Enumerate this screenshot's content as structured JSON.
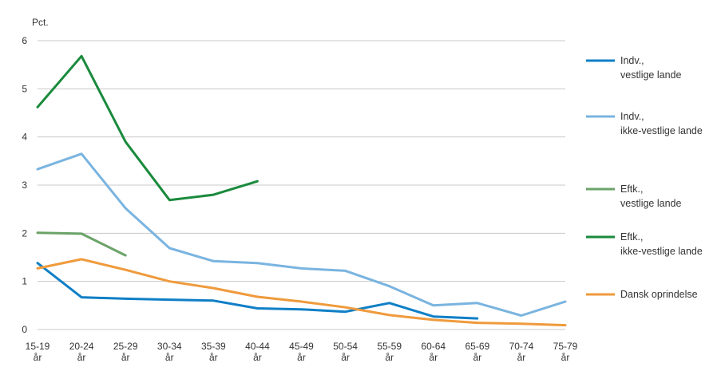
{
  "chart_data": {
    "type": "line",
    "ylabel": "Pct.",
    "ylim": [
      0,
      6
    ],
    "yticks": [
      0,
      1,
      2,
      3,
      4,
      5,
      6
    ],
    "grid": true,
    "legend_position": "right",
    "categories": [
      [
        "15-19",
        "år"
      ],
      [
        "20-24",
        "år"
      ],
      [
        "25-29",
        "år"
      ],
      [
        "30-34",
        "år"
      ],
      [
        "35-39",
        "år"
      ],
      [
        "40-44",
        "år"
      ],
      [
        "45-49",
        "år"
      ],
      [
        "50-54",
        "år"
      ],
      [
        "55-59",
        "år"
      ],
      [
        "60-64",
        "år"
      ],
      [
        "65-69",
        "år"
      ],
      [
        "70-74",
        "år"
      ],
      [
        "75-79",
        "år"
      ]
    ],
    "series": [
      {
        "name": [
          "Indv.,",
          "vestlige lande"
        ],
        "color": "#0f7fc6",
        "values": [
          1.38,
          0.67,
          0.64,
          0.62,
          0.6,
          0.44,
          0.42,
          0.37,
          0.55,
          0.27,
          0.23,
          null,
          null
        ]
      },
      {
        "name": [
          "Indv.,",
          "ikke-vestlige lande"
        ],
        "color": "#7ab4e0",
        "values": [
          3.33,
          3.65,
          2.52,
          1.69,
          1.42,
          1.38,
          1.27,
          1.22,
          0.9,
          0.5,
          0.55,
          0.29,
          0.58
        ]
      },
      {
        "name": [
          "Eftk.,",
          "vestlige lande"
        ],
        "color": "#6ba368",
        "values": [
          2.01,
          1.99,
          1.54,
          null,
          null,
          null,
          null,
          null,
          null,
          null,
          null,
          null,
          null
        ]
      },
      {
        "name": [
          "Eftk.,",
          "ikke-vestlige lande"
        ],
        "color": "#1a8a3c",
        "values": [
          4.62,
          5.68,
          3.9,
          2.69,
          2.8,
          3.08,
          null,
          null,
          null,
          null,
          null,
          null,
          null
        ]
      },
      {
        "name": [
          "Dansk oprindelse"
        ],
        "color": "#ef9a3c",
        "values": [
          1.27,
          1.46,
          1.24,
          1.0,
          0.86,
          0.68,
          0.58,
          0.46,
          0.3,
          0.2,
          0.14,
          0.12,
          0.09
        ]
      }
    ]
  }
}
